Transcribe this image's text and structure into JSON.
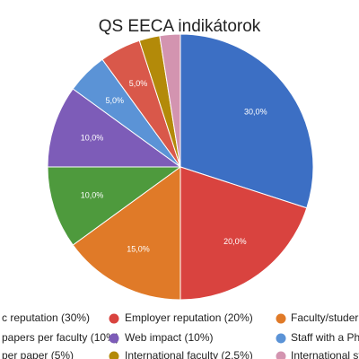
{
  "chart_data": {
    "type": "pie",
    "title": "QS EECA indikátorok",
    "categories": [
      "c reputation (30%)",
      "Employer reputation (20%)",
      "Faculty/studer",
      "papers per faculty (10%)",
      "Web impact (10%)",
      "Staff with a PhD",
      "per paper (5%)",
      "International faculty (2.5%)",
      "International stu"
    ],
    "values": [
      30,
      20,
      15,
      10,
      10,
      5,
      5,
      2.5,
      2.5
    ],
    "value_labels": [
      "30,0%",
      "20,0%",
      "15,0%",
      "10,0%",
      "10,0%",
      "5,0%",
      "5,0%",
      null,
      null
    ],
    "colors": [
      "#3c6fc4",
      "#d9433f",
      "#e07a28",
      "#4e9a3d",
      "#7d5cb8",
      "#5b93d6",
      "#d9584a",
      "#b38a09",
      "#d394b0"
    ]
  }
}
